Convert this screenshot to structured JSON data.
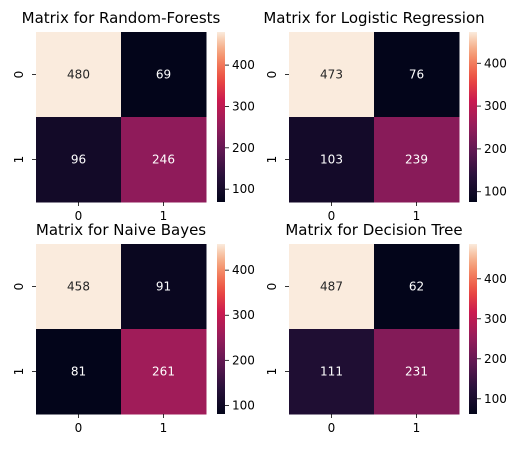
{
  "chart_data": [
    {
      "type": "heatmap",
      "title": "Matrix for Random-Forests",
      "x_tick_labels": [
        "0",
        "1"
      ],
      "y_tick_labels": [
        "0",
        "1"
      ],
      "values": [
        [
          480,
          69
        ],
        [
          96,
          246
        ]
      ],
      "colorbar": {
        "range": [
          69,
          480
        ],
        "ticks": [
          "100",
          "200",
          "300",
          "400"
        ]
      },
      "colormap": "rocket"
    },
    {
      "type": "heatmap",
      "title": "Matrix for Logistic Regression",
      "x_tick_labels": [
        "0",
        "1"
      ],
      "y_tick_labels": [
        "0",
        "1"
      ],
      "values": [
        [
          473,
          76
        ],
        [
          103,
          239
        ]
      ],
      "colorbar": {
        "range": [
          76,
          473
        ],
        "ticks": [
          "100",
          "200",
          "300",
          "400"
        ]
      },
      "colormap": "rocket"
    },
    {
      "type": "heatmap",
      "title": "Matrix for Naive Bayes",
      "x_tick_labels": [
        "0",
        "1"
      ],
      "y_tick_labels": [
        "0",
        "1"
      ],
      "values": [
        [
          458,
          91
        ],
        [
          81,
          261
        ]
      ],
      "colorbar": {
        "range": [
          81,
          458
        ],
        "ticks": [
          "100",
          "200",
          "300",
          "400"
        ]
      },
      "colormap": "rocket"
    },
    {
      "type": "heatmap",
      "title": "Matrix for Decision Tree",
      "x_tick_labels": [
        "0",
        "1"
      ],
      "y_tick_labels": [
        "0",
        "1"
      ],
      "values": [
        [
          487,
          62
        ],
        [
          111,
          231
        ]
      ],
      "colorbar": {
        "range": [
          62,
          487
        ],
        "ticks": [
          "100",
          "200",
          "300",
          "400"
        ]
      },
      "colormap": "rocket"
    }
  ]
}
